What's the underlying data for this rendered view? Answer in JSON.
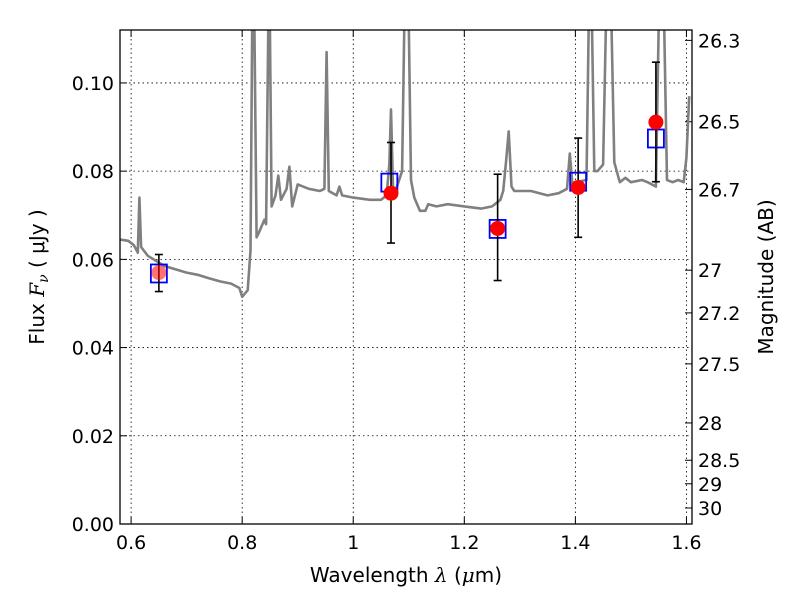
{
  "chart_data": {
    "type": "scatter",
    "title": "",
    "xlabel": {
      "prefix": "Wavelength ",
      "var": "λ",
      "unit_open": " (",
      "unit_mu": "μ",
      "unit_rest": "m)"
    },
    "ylabel": {
      "prefix": "Flux ",
      "var": "F",
      "sub": "ν",
      "unit": " ( μJy )"
    },
    "y2label": "Magnitude (AB)",
    "xlim": [
      0.58,
      1.61
    ],
    "ylim": [
      0.0,
      0.112
    ],
    "grid": true,
    "x_ticks": [
      {
        "value": 0.6,
        "label": "0.6"
      },
      {
        "value": 0.8,
        "label": "0.8"
      },
      {
        "value": 1.0,
        "label": "1"
      },
      {
        "value": 1.2,
        "label": "1.2"
      },
      {
        "value": 1.4,
        "label": "1.4"
      },
      {
        "value": 1.6,
        "label": "1.6"
      }
    ],
    "y_ticks": [
      {
        "value": 0.0,
        "label": "0.00"
      },
      {
        "value": 0.02,
        "label": "0.02"
      },
      {
        "value": 0.04,
        "label": "0.04"
      },
      {
        "value": 0.06,
        "label": "0.06"
      },
      {
        "value": 0.08,
        "label": "0.08"
      },
      {
        "value": 0.1,
        "label": "0.10"
      }
    ],
    "mag_ticks": [
      {
        "value": 26.3,
        "label": "26.3"
      },
      {
        "value": 26.5,
        "label": "26.5"
      },
      {
        "value": 26.7,
        "label": "26.7"
      },
      {
        "value": 27.0,
        "label": "27"
      },
      {
        "value": 27.2,
        "label": "27.2"
      },
      {
        "value": 27.5,
        "label": "27.5"
      },
      {
        "value": 28.0,
        "label": "28"
      },
      {
        "value": 28.5,
        "label": "28.5"
      },
      {
        "value": 29.0,
        "label": "29"
      },
      {
        "value": 30.0,
        "label": "30"
      }
    ],
    "series": [
      {
        "type": "line",
        "color": "#808080",
        "points": [
          [
            0.58,
            0.0645
          ],
          [
            0.595,
            0.0642
          ],
          [
            0.605,
            0.0632
          ],
          [
            0.612,
            0.0615
          ],
          [
            0.615,
            0.074
          ],
          [
            0.618,
            0.0628
          ],
          [
            0.63,
            0.0608
          ],
          [
            0.66,
            0.0585
          ],
          [
            0.7,
            0.057
          ],
          [
            0.72,
            0.0565
          ],
          [
            0.74,
            0.0557
          ],
          [
            0.76,
            0.055
          ],
          [
            0.78,
            0.0545
          ],
          [
            0.795,
            0.0535
          ],
          [
            0.8,
            0.0515
          ],
          [
            0.81,
            0.053
          ],
          [
            0.815,
            0.062
          ],
          [
            0.818,
            0.113
          ],
          [
            0.822,
            0.113
          ],
          [
            0.826,
            0.065
          ],
          [
            0.83,
            0.066
          ],
          [
            0.84,
            0.069
          ],
          [
            0.843,
            0.068
          ],
          [
            0.847,
            0.113
          ],
          [
            0.85,
            0.113
          ],
          [
            0.853,
            0.072
          ],
          [
            0.86,
            0.0745
          ],
          [
            0.865,
            0.079
          ],
          [
            0.87,
            0.0735
          ],
          [
            0.88,
            0.076
          ],
          [
            0.885,
            0.081
          ],
          [
            0.89,
            0.072
          ],
          [
            0.9,
            0.077
          ],
          [
            0.92,
            0.076
          ],
          [
            0.94,
            0.0755
          ],
          [
            0.948,
            0.076
          ],
          [
            0.952,
            0.107
          ],
          [
            0.956,
            0.0755
          ],
          [
            0.97,
            0.0745
          ],
          [
            0.975,
            0.0765
          ],
          [
            0.98,
            0.0745
          ],
          [
            1.0,
            0.074
          ],
          [
            1.03,
            0.0735
          ],
          [
            1.05,
            0.0735
          ],
          [
            1.06,
            0.0745
          ],
          [
            1.065,
            0.0815
          ],
          [
            1.068,
            0.094
          ],
          [
            1.072,
            0.0745
          ],
          [
            1.08,
            0.077
          ],
          [
            1.088,
            0.08
          ],
          [
            1.092,
            0.113
          ],
          [
            1.1,
            0.113
          ],
          [
            1.104,
            0.078
          ],
          [
            1.11,
            0.074
          ],
          [
            1.12,
            0.071
          ],
          [
            1.13,
            0.071
          ],
          [
            1.135,
            0.0725
          ],
          [
            1.15,
            0.072
          ],
          [
            1.17,
            0.0725
          ],
          [
            1.2,
            0.072
          ],
          [
            1.23,
            0.0715
          ],
          [
            1.25,
            0.072
          ],
          [
            1.265,
            0.0735
          ],
          [
            1.27,
            0.0755
          ],
          [
            1.275,
            0.082
          ],
          [
            1.28,
            0.089
          ],
          [
            1.285,
            0.0765
          ],
          [
            1.29,
            0.0755
          ],
          [
            1.32,
            0.0755
          ],
          [
            1.35,
            0.0745
          ],
          [
            1.37,
            0.075
          ],
          [
            1.385,
            0.076
          ],
          [
            1.39,
            0.084
          ],
          [
            1.395,
            0.0765
          ],
          [
            1.4,
            0.0775
          ],
          [
            1.42,
            0.078
          ],
          [
            1.424,
            0.113
          ],
          [
            1.43,
            0.113
          ],
          [
            1.434,
            0.08
          ],
          [
            1.44,
            0.08
          ],
          [
            1.45,
            0.0815
          ],
          [
            1.455,
            0.113
          ],
          [
            1.465,
            0.113
          ],
          [
            1.47,
            0.082
          ],
          [
            1.48,
            0.0775
          ],
          [
            1.49,
            0.0785
          ],
          [
            1.5,
            0.0775
          ],
          [
            1.52,
            0.078
          ],
          [
            1.53,
            0.0775
          ],
          [
            1.545,
            0.0765
          ],
          [
            1.55,
            0.113
          ],
          [
            1.56,
            0.113
          ],
          [
            1.565,
            0.078
          ],
          [
            1.575,
            0.0775
          ],
          [
            1.585,
            0.078
          ],
          [
            1.595,
            0.0775
          ],
          [
            1.6,
            0.083
          ],
          [
            1.605,
            0.097
          ]
        ]
      },
      {
        "type": "open-square",
        "color": "#0000ff",
        "points": [
          [
            0.65,
            0.0568
          ],
          [
            1.065,
            0.0774
          ],
          [
            1.26,
            0.0669
          ],
          [
            1.405,
            0.0776
          ],
          [
            1.545,
            0.0874
          ]
        ]
      },
      {
        "type": "filled-circle",
        "color": "#ff0000",
        "points": [
          [
            0.65,
            0.057
          ],
          [
            1.068,
            0.075
          ],
          [
            1.26,
            0.067
          ],
          [
            1.405,
            0.0763
          ],
          [
            1.545,
            0.0911
          ]
        ],
        "err_low": [
          0.0043,
          0.0113,
          0.0118,
          0.0113,
          0.0135
        ],
        "err_high": [
          0.0041,
          0.0115,
          0.0123,
          0.0112,
          0.0136
        ]
      }
    ]
  }
}
